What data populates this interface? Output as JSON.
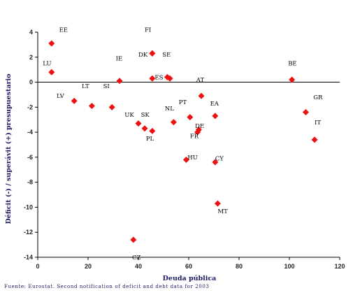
{
  "chart_data": {
    "type": "scatter",
    "xlabel": "Deuda pública",
    "ylabel": "Déficit (-) / superávit (+) presupuestario",
    "xlim": [
      0,
      120
    ],
    "ylim": [
      -14,
      4
    ],
    "xticks": [
      0,
      20,
      40,
      60,
      80,
      100,
      120
    ],
    "yticks": [
      4,
      2,
      0,
      -2,
      -4,
      -6,
      -8,
      -10,
      -12,
      -14
    ],
    "marker_color": "#ee1111",
    "points": [
      {
        "label": "EE",
        "x": 5.5,
        "y": 3.1
      },
      {
        "label": "LU",
        "x": 5.5,
        "y": 0.8
      },
      {
        "label": "FI",
        "x": 45.5,
        "y": 2.3
      },
      {
        "label": "DK",
        "x": 45.5,
        "y": 2.3
      },
      {
        "label": "SE",
        "x": 51.5,
        "y": 0.4
      },
      {
        "label": "ES",
        "x": 45.5,
        "y": 0.3
      },
      {
        "label": "IE",
        "x": 32.5,
        "y": 0.1
      },
      {
        "label": "AT",
        "x": 52.5,
        "y": 0.3
      },
      {
        "label": "BE",
        "x": 101,
        "y": 0.2
      },
      {
        "label": "LV",
        "x": 14.5,
        "y": -1.5
      },
      {
        "label": "LT",
        "x": 21.5,
        "y": -1.9
      },
      {
        "label": "SI",
        "x": 29.5,
        "y": -2.0
      },
      {
        "label": "UK",
        "x": 40,
        "y": -3.3
      },
      {
        "label": "SK",
        "x": 42.5,
        "y": -3.7
      },
      {
        "label": "PL",
        "x": 45.5,
        "y": -3.9
      },
      {
        "label": "NL",
        "x": 54,
        "y": -3.2
      },
      {
        "label": "PT",
        "x": 60.5,
        "y": -2.8
      },
      {
        "label": "EA",
        "x": 65,
        "y": -1.1
      },
      {
        "label": "DE",
        "x": 64,
        "y": -3.8
      },
      {
        "label": "FR",
        "x": 63.5,
        "y": -4.0
      },
      {
        "label": "GR",
        "x": 106.5,
        "y": -2.4
      },
      {
        "label": "IT",
        "x": 110,
        "y": -4.6
      },
      {
        "label": "ES2",
        "x": 70.5,
        "y": -2.7
      },
      {
        "label": "HU",
        "x": 59,
        "y": -6.2
      },
      {
        "label": "CY",
        "x": 70.5,
        "y": -6.4
      },
      {
        "label": "MT",
        "x": 71.5,
        "y": -9.7
      },
      {
        "label": "CZ",
        "x": 38,
        "y": -12.6
      }
    ],
    "point_labels": [
      {
        "text": "EE",
        "x": 8.5,
        "y": 4.2
      },
      {
        "text": "FI",
        "x": 42.5,
        "y": 4.2
      },
      {
        "text": "LU",
        "x": 2,
        "y": 1.5
      },
      {
        "text": "IE",
        "x": 31,
        "y": 1.9
      },
      {
        "text": "DK",
        "x": 40,
        "y": 2.2
      },
      {
        "text": "SE",
        "x": 49.5,
        "y": 2.2
      },
      {
        "text": "ES",
        "x": 46.5,
        "y": 0.4
      },
      {
        "text": "AT",
        "x": 63,
        "y": 0.2
      },
      {
        "text": "BE",
        "x": 99.5,
        "y": 1.5
      },
      {
        "text": "LV",
        "x": 7.5,
        "y": -1.1
      },
      {
        "text": "LT",
        "x": 17.5,
        "y": -0.3
      },
      {
        "text": "SI",
        "x": 26,
        "y": -0.3
      },
      {
        "text": "UK",
        "x": 34.5,
        "y": -2.6
      },
      {
        "text": "SK",
        "x": 41,
        "y": -2.6
      },
      {
        "text": "PL",
        "x": 43,
        "y": -4.5
      },
      {
        "text": "NL",
        "x": 50.5,
        "y": -2.1
      },
      {
        "text": "PT",
        "x": 56,
        "y": -1.6
      },
      {
        "text": "EA",
        "x": 68.5,
        "y": -1.7
      },
      {
        "text": "DE",
        "x": 62.5,
        "y": -3.5
      },
      {
        "text": "FR",
        "x": 60.5,
        "y": -4.3
      },
      {
        "text": "GR",
        "x": 109.5,
        "y": -1.2
      },
      {
        "text": "IT",
        "x": 110,
        "y": -3.2
      },
      {
        "text": "HU",
        "x": 59.5,
        "y": -6.0
      },
      {
        "text": "CY",
        "x": 70.5,
        "y": -6.1
      },
      {
        "text": "MT",
        "x": 71.5,
        "y": -10.3
      },
      {
        "text": "CZ",
        "x": 37.5,
        "y": -14.0
      }
    ]
  },
  "source": "Fuente: Eurostat. Second notification of deficit and debt data for 2003"
}
